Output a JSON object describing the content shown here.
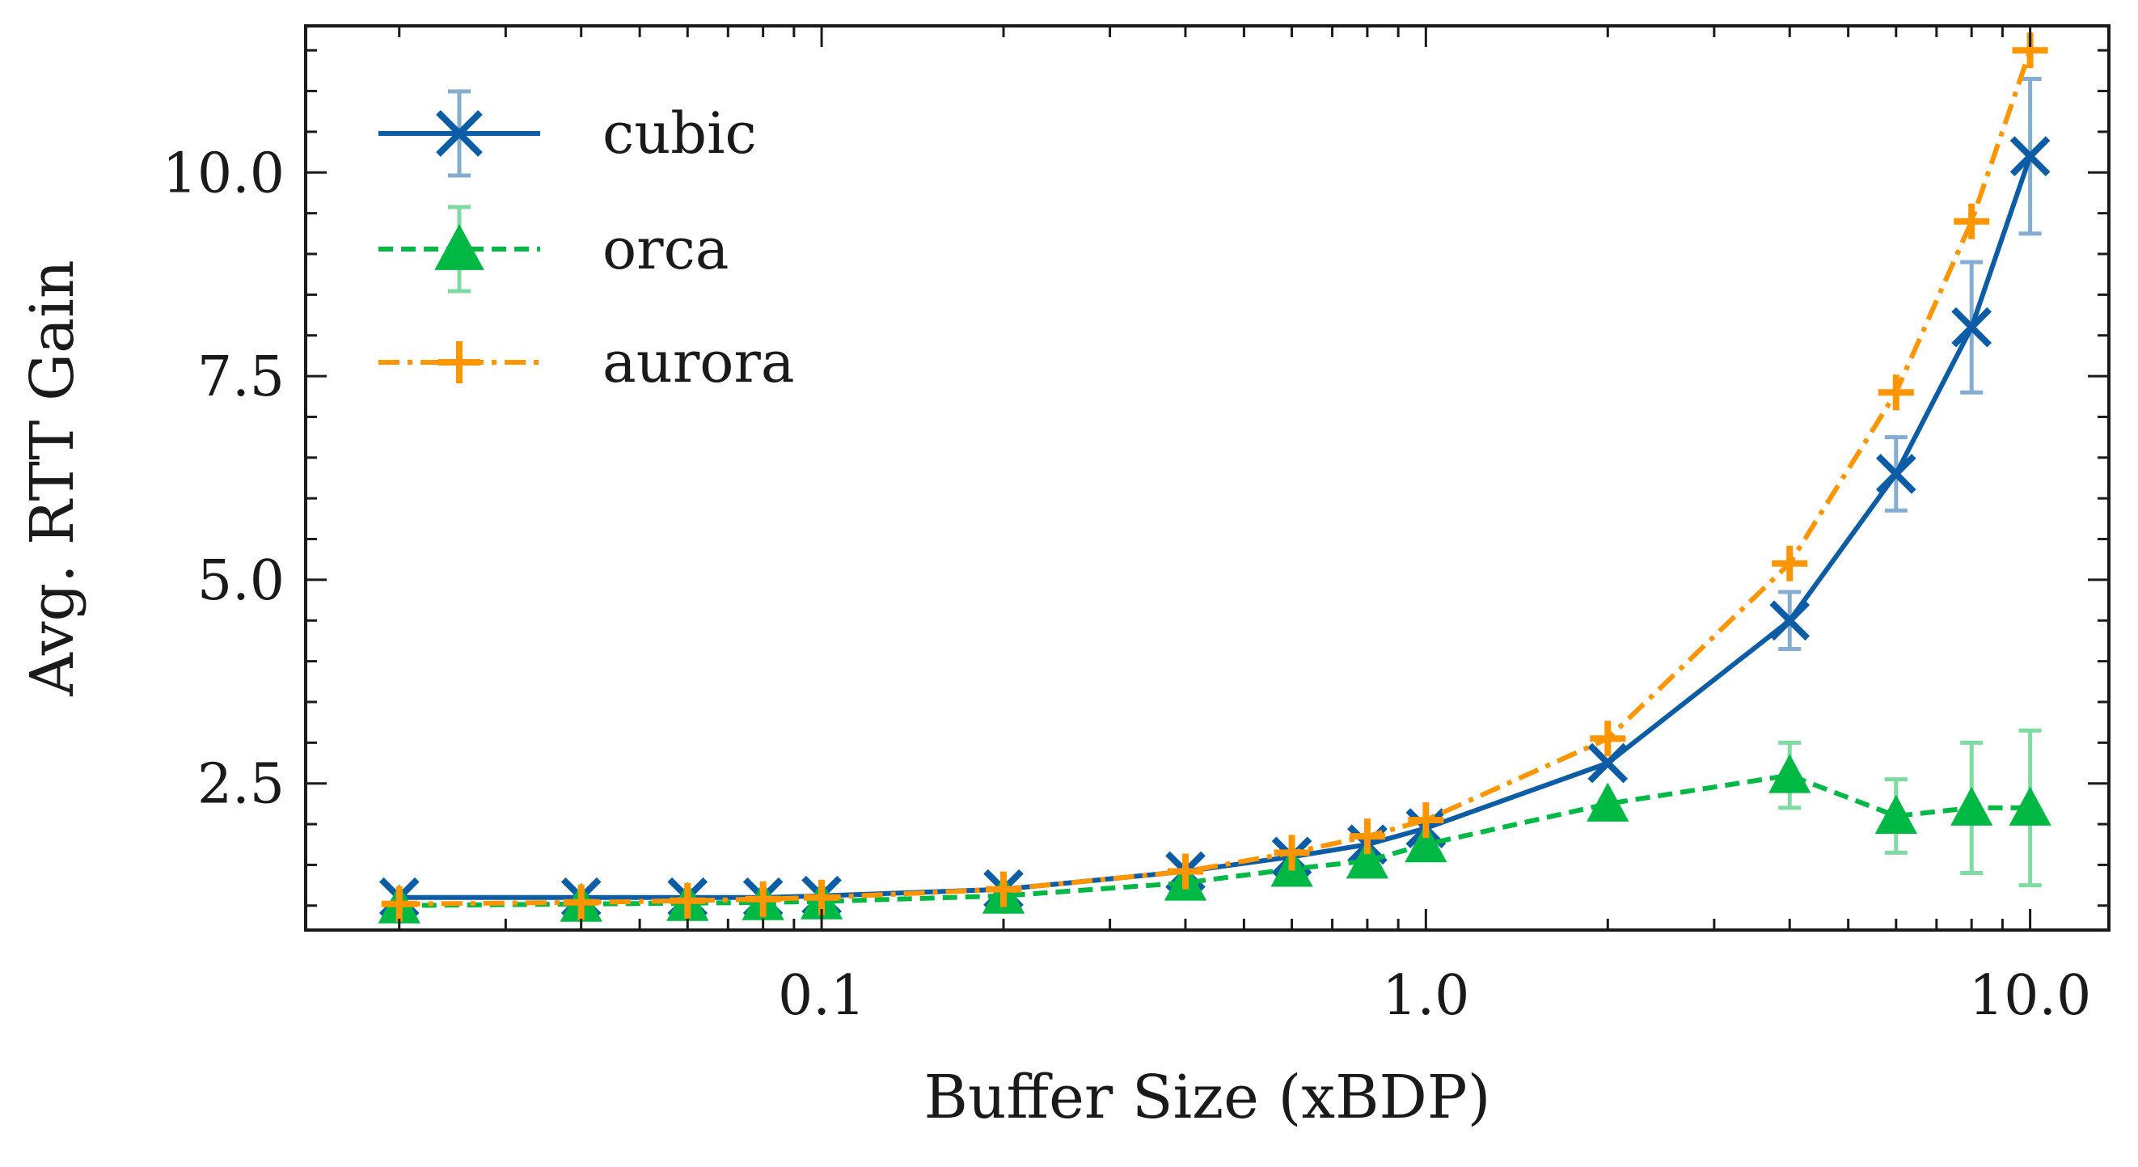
{
  "chart_data": {
    "type": "line",
    "xlabel": "Buffer Size (xBDP)",
    "ylabel": "Avg. RTT Gain",
    "xscale": "log",
    "xlim": [
      0.014,
      13.5
    ],
    "ylim": [
      0.7,
      11.8
    ],
    "x_ticks": [
      {
        "value": 0.1,
        "label": "0.1"
      },
      {
        "value": 1.0,
        "label": "1.0"
      },
      {
        "value": 10.0,
        "label": "10.0"
      }
    ],
    "y_ticks": [
      {
        "value": 2.5,
        "label": "2.5"
      },
      {
        "value": 5.0,
        "label": "5.0"
      },
      {
        "value": 7.5,
        "label": "7.5"
      },
      {
        "value": 10.0,
        "label": "10.0"
      }
    ],
    "grid": false,
    "legend_position": "top-left",
    "series": [
      {
        "name": "cubic",
        "color": "#0C5DA5",
        "marker": "x",
        "linestyle": "solid",
        "x": [
          0.02,
          0.04,
          0.06,
          0.08,
          0.1,
          0.2,
          0.4,
          0.6,
          0.8,
          1.0,
          2.0,
          4.0,
          6.0,
          8.0,
          10.0
        ],
        "y": [
          1.1,
          1.1,
          1.1,
          1.1,
          1.12,
          1.2,
          1.42,
          1.6,
          1.75,
          1.95,
          2.75,
          4.5,
          6.3,
          8.1,
          10.2
        ],
        "err": [
          0,
          0,
          0,
          0,
          0,
          0,
          0,
          0,
          0,
          0,
          0,
          0.35,
          0.45,
          0.8,
          0.95
        ]
      },
      {
        "name": "orca",
        "color": "#00B945",
        "marker": "triangle",
        "linestyle": "dashed",
        "x": [
          0.02,
          0.04,
          0.06,
          0.08,
          0.1,
          0.2,
          0.4,
          0.6,
          0.8,
          1.0,
          2.0,
          4.0,
          6.0,
          8.0,
          10.0
        ],
        "y": [
          1.0,
          1.02,
          1.03,
          1.04,
          1.05,
          1.12,
          1.28,
          1.45,
          1.55,
          1.75,
          2.25,
          2.6,
          2.1,
          2.2,
          2.2
        ],
        "err": [
          0,
          0,
          0,
          0,
          0,
          0,
          0,
          0,
          0,
          0,
          0,
          0.4,
          0.45,
          0.8,
          0.95
        ]
      },
      {
        "name": "aurora",
        "color": "#FF9500",
        "marker": "plus",
        "linestyle": "dashdot",
        "x": [
          0.02,
          0.04,
          0.06,
          0.08,
          0.1,
          0.2,
          0.4,
          0.6,
          0.8,
          1.0,
          2.0,
          4.0,
          6.0,
          8.0,
          10.0
        ],
        "y": [
          1.02,
          1.04,
          1.06,
          1.08,
          1.1,
          1.2,
          1.42,
          1.65,
          1.85,
          2.05,
          3.05,
          5.2,
          7.3,
          9.4,
          11.5
        ],
        "err": [
          0,
          0,
          0,
          0,
          0,
          0,
          0,
          0,
          0,
          0,
          0,
          0,
          0,
          0,
          0
        ]
      }
    ]
  }
}
